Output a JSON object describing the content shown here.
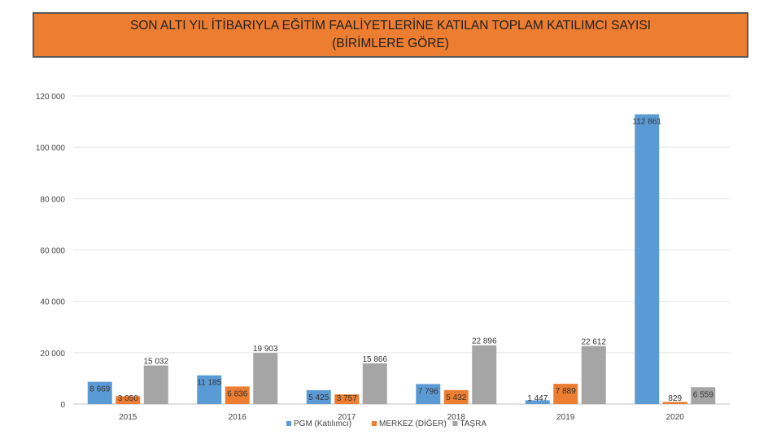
{
  "title": {
    "line1": "SON ALTI YIL İTİBARIYLA EĞİTİM FAALİYETLERİNE KATILAN TOPLAM KATILIMCI SAYISI",
    "line2": "(BİRİMLERE GÖRE)"
  },
  "chart_data": {
    "type": "bar",
    "categories": [
      "2015",
      "2016",
      "2017",
      "2018",
      "2019",
      "2020"
    ],
    "series": [
      {
        "name": "PGM (Katılımcı)",
        "color": "#5B9BD5",
        "values": [
          8669,
          11185,
          5425,
          7796,
          1447,
          112861
        ],
        "labels": [
          "8 669",
          "11 185",
          "5 425",
          "7 796",
          "1 447",
          "112 861"
        ]
      },
      {
        "name": "MERKEZ (DİĞER)",
        "color": "#ED7D31",
        "values": [
          3050,
          6836,
          3757,
          5432,
          7889,
          829
        ],
        "labels": [
          "3 050",
          "6 836",
          "3 757",
          "5 432",
          "7 889",
          "829"
        ]
      },
      {
        "name": "TAŞRA",
        "color": "#A5A5A5",
        "values": [
          15032,
          19903,
          15866,
          22896,
          22612,
          6559
        ],
        "labels": [
          "15 032",
          "19 903",
          "15 866",
          "22 896",
          "22 612",
          "6 559"
        ]
      }
    ],
    "ylim": [
      0,
      120000
    ],
    "yticks": [
      0,
      20000,
      40000,
      60000,
      80000,
      100000,
      120000
    ],
    "ytick_labels": [
      "0",
      "20 000",
      "40 000",
      "60 000",
      "80 000",
      "100 000",
      "120 000"
    ],
    "grid": true,
    "legend_position": "bottom"
  }
}
